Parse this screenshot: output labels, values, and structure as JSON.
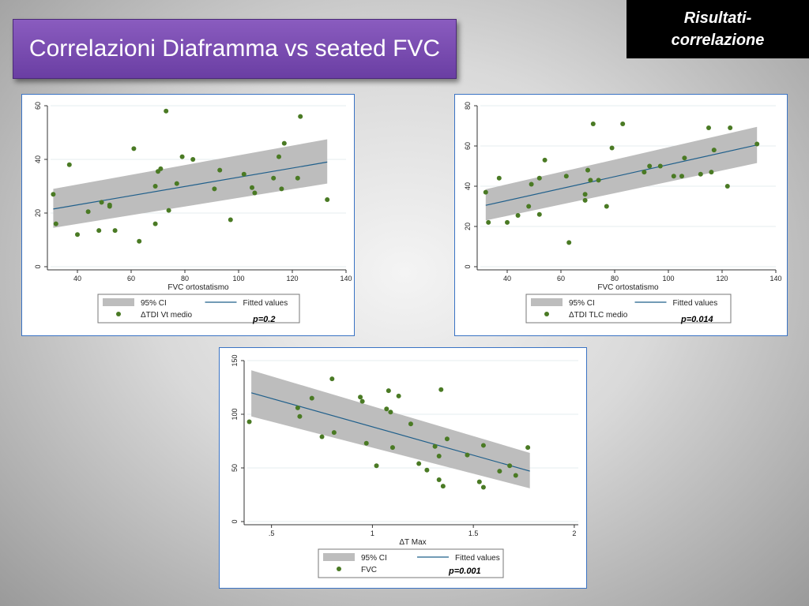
{
  "slide": {
    "title": "Correlazioni Diaframma vs seated FVC",
    "corner_label": "Risultati-\ncorrelazione",
    "colors": {
      "title_bg": "#7b4fb3",
      "point": "#4a7a24",
      "fit_line": "#1f5f8b",
      "ci_band": "#bdbdbd",
      "panel_border": "#3a73c4"
    }
  },
  "chart_data": [
    {
      "type": "scatter",
      "xlabel": "FVC ortostatismo",
      "ylabel": "",
      "xlim": [
        30,
        140
      ],
      "ylim": [
        0,
        60
      ],
      "xticks": [
        40,
        60,
        80,
        100,
        120,
        140
      ],
      "yticks": [
        0,
        20,
        40,
        60
      ],
      "xtick_labels": [
        "40",
        "60",
        "80",
        "100",
        "120",
        "140"
      ],
      "ytick_labels": [
        "0",
        "20",
        "40",
        "60"
      ],
      "legend": [
        {
          "label": "95% CI",
          "kind": "band"
        },
        {
          "label": "Fitted values",
          "kind": "line"
        },
        {
          "label": "ΔTDI Vt medio",
          "kind": "point"
        }
      ],
      "annotation": "p=0.2",
      "fit": {
        "x": [
          31,
          133
        ],
        "y": [
          21.5,
          39
        ]
      },
      "ci": {
        "x": [
          31,
          133
        ],
        "lower": [
          14.5,
          31
        ],
        "upper": [
          29,
          47.5
        ]
      },
      "points": [
        [
          31,
          27
        ],
        [
          32,
          16
        ],
        [
          37,
          38
        ],
        [
          40,
          12
        ],
        [
          44,
          20.5
        ],
        [
          48,
          13.5
        ],
        [
          49,
          24
        ],
        [
          52,
          23
        ],
        [
          52,
          22.5
        ],
        [
          54,
          13.5
        ],
        [
          61,
          44
        ],
        [
          63,
          9.5
        ],
        [
          69,
          16
        ],
        [
          69,
          30
        ],
        [
          70,
          35.5
        ],
        [
          71,
          36.5
        ],
        [
          73,
          58
        ],
        [
          74,
          21
        ],
        [
          77,
          31
        ],
        [
          79,
          41
        ],
        [
          83,
          40
        ],
        [
          91,
          29
        ],
        [
          93,
          36
        ],
        [
          102,
          34.5
        ],
        [
          105,
          29.5
        ],
        [
          106,
          27.5
        ],
        [
          97,
          17.5
        ],
        [
          113,
          33
        ],
        [
          115,
          41
        ],
        [
          116,
          29
        ],
        [
          117,
          46
        ],
        [
          122,
          33
        ],
        [
          123,
          56
        ],
        [
          133,
          25
        ]
      ]
    },
    {
      "type": "scatter",
      "xlabel": "FVC ortostatismo",
      "ylabel": "",
      "xlim": [
        30,
        140
      ],
      "ylim": [
        0,
        80
      ],
      "xticks": [
        40,
        60,
        80,
        100,
        120,
        140
      ],
      "yticks": [
        0,
        20,
        40,
        60,
        80
      ],
      "xtick_labels": [
        "40",
        "60",
        "80",
        "100",
        "120",
        "140"
      ],
      "ytick_labels": [
        "0",
        "20",
        "40",
        "60",
        "80"
      ],
      "legend": [
        {
          "label": "95% CI",
          "kind": "band"
        },
        {
          "label": "Fitted values",
          "kind": "line"
        },
        {
          "label": "ΔTDI TLC medio",
          "kind": "point"
        }
      ],
      "annotation": "p=0.014",
      "fit": {
        "x": [
          32,
          133
        ],
        "y": [
          30.5,
          60.5
        ]
      },
      "ci": {
        "x": [
          32,
          133
        ],
        "lower": [
          23,
          51.5
        ],
        "upper": [
          38.5,
          69.5
        ]
      },
      "points": [
        [
          32,
          37
        ],
        [
          33,
          22
        ],
        [
          37,
          44
        ],
        [
          40,
          22
        ],
        [
          44,
          25.5
        ],
        [
          48,
          30
        ],
        [
          49,
          41
        ],
        [
          52,
          44
        ],
        [
          52,
          26
        ],
        [
          54,
          53
        ],
        [
          62,
          45
        ],
        [
          63,
          12
        ],
        [
          69,
          33
        ],
        [
          69,
          36
        ],
        [
          70,
          48
        ],
        [
          71,
          43
        ],
        [
          72,
          71
        ],
        [
          74,
          43
        ],
        [
          77,
          30
        ],
        [
          79,
          59
        ],
        [
          83,
          71
        ],
        [
          91,
          47
        ],
        [
          93,
          50
        ],
        [
          97,
          50
        ],
        [
          102,
          45
        ],
        [
          105,
          45
        ],
        [
          106,
          54
        ],
        [
          112,
          46
        ],
        [
          115,
          69
        ],
        [
          116,
          47
        ],
        [
          117,
          58
        ],
        [
          122,
          40
        ],
        [
          123,
          69
        ],
        [
          133,
          61
        ]
      ]
    },
    {
      "type": "scatter",
      "xlabel": "ΔT Max",
      "ylabel": "",
      "xlim": [
        0.38,
        2.02
      ],
      "ylim": [
        0,
        150
      ],
      "xticks": [
        0.5,
        1,
        1.5,
        2
      ],
      "yticks": [
        0,
        50,
        100,
        150
      ],
      "xtick_labels": [
        ".5",
        "1",
        "1.5",
        "2"
      ],
      "ytick_labels": [
        "0",
        "50",
        "100",
        "150"
      ],
      "legend": [
        {
          "label": "95% CI",
          "kind": "band"
        },
        {
          "label": "Fitted values",
          "kind": "line"
        },
        {
          "label": "FVC",
          "kind": "point"
        }
      ],
      "annotation": "p=0.001",
      "fit": {
        "x": [
          0.4,
          1.78
        ],
        "y": [
          120,
          47
        ]
      },
      "ci": {
        "x": [
          0.4,
          1.78
        ],
        "lower": [
          98,
          31
        ],
        "upper": [
          141,
          64
        ]
      },
      "points": [
        [
          0.39,
          93
        ],
        [
          0.63,
          106
        ],
        [
          0.64,
          98
        ],
        [
          0.7,
          115
        ],
        [
          0.75,
          79
        ],
        [
          0.8,
          133
        ],
        [
          0.81,
          83
        ],
        [
          0.94,
          116
        ],
        [
          0.95,
          112
        ],
        [
          0.97,
          73
        ],
        [
          1.02,
          52
        ],
        [
          1.07,
          105
        ],
        [
          1.08,
          122
        ],
        [
          1.09,
          102
        ],
        [
          1.1,
          69
        ],
        [
          1.13,
          117
        ],
        [
          1.19,
          91
        ],
        [
          1.23,
          54
        ],
        [
          1.27,
          48
        ],
        [
          1.31,
          70
        ],
        [
          1.33,
          61
        ],
        [
          1.33,
          39
        ],
        [
          1.34,
          123
        ],
        [
          1.35,
          33
        ],
        [
          1.37,
          77
        ],
        [
          1.47,
          62
        ],
        [
          1.53,
          37
        ],
        [
          1.55,
          71
        ],
        [
          1.55,
          32
        ],
        [
          1.63,
          47
        ],
        [
          1.68,
          52
        ],
        [
          1.71,
          43
        ],
        [
          1.77,
          69
        ]
      ]
    }
  ]
}
